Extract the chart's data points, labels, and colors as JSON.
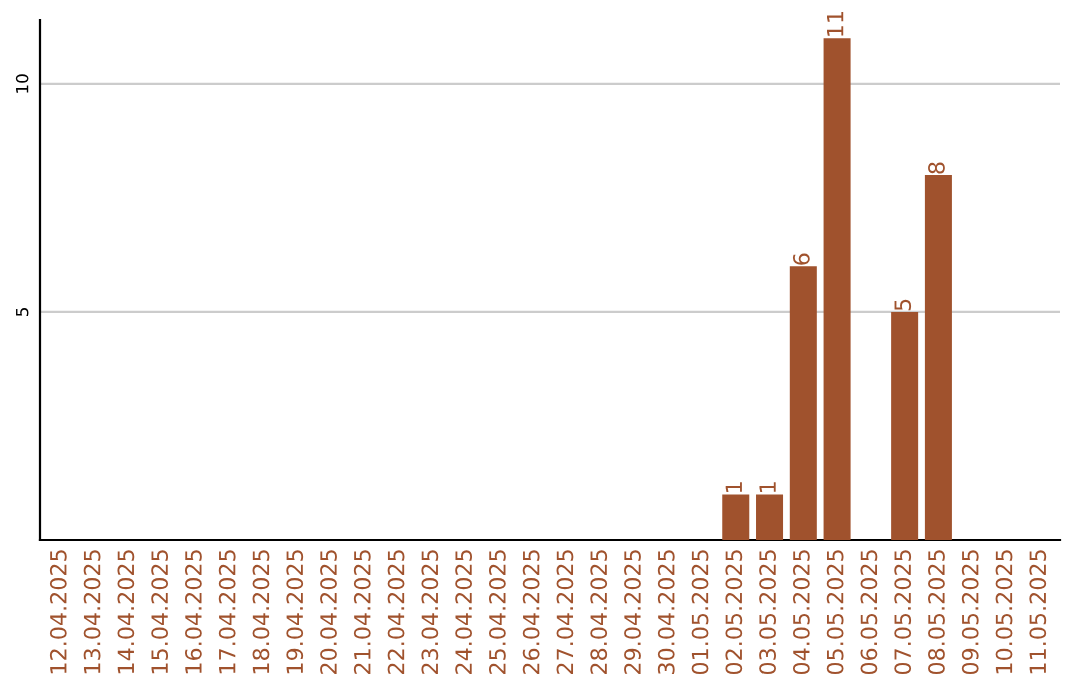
{
  "chart_data": {
    "type": "bar",
    "categories": [
      "12.04.2025",
      "13.04.2025",
      "14.04.2025",
      "15.04.2025",
      "16.04.2025",
      "17.04.2025",
      "18.04.2025",
      "19.04.2025",
      "20.04.2025",
      "21.04.2025",
      "22.04.2025",
      "23.04.2025",
      "24.04.2025",
      "25.04.2025",
      "26.04.2025",
      "27.04.2025",
      "28.04.2025",
      "29.04.2025",
      "30.04.2025",
      "01.05.2025",
      "02.05.2025",
      "03.05.2025",
      "04.05.2025",
      "05.05.2025",
      "06.05.2025",
      "07.05.2025",
      "08.05.2025",
      "09.05.2025",
      "10.05.2025",
      "11.05.2025"
    ],
    "values": [
      0,
      0,
      0,
      0,
      0,
      0,
      0,
      0,
      0,
      0,
      0,
      0,
      0,
      0,
      0,
      0,
      0,
      0,
      0,
      0,
      1,
      1,
      6,
      11,
      0,
      5,
      8,
      0,
      0,
      0
    ],
    "value_labels": [
      null,
      null,
      null,
      null,
      null,
      null,
      null,
      null,
      null,
      null,
      null,
      null,
      null,
      null,
      null,
      null,
      null,
      null,
      null,
      null,
      "1",
      "1",
      "6",
      "11",
      null,
      "5",
      "8",
      null,
      null,
      null
    ],
    "color": "#a0522d",
    "ylim": [
      0,
      11.4
    ],
    "yticks": [
      5,
      10
    ],
    "grid": "y"
  }
}
